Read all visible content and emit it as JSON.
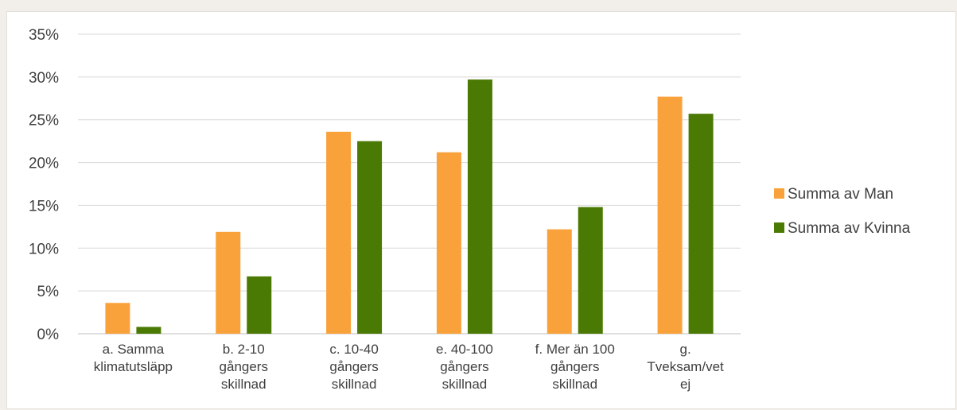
{
  "chart_data": {
    "type": "bar",
    "categories": [
      [
        "a. Samma",
        "klimatutsläpp"
      ],
      [
        "b. 2-10",
        "gångers",
        "skillnad"
      ],
      [
        "c. 10-40",
        "gångers",
        "skillnad"
      ],
      [
        "e. 40-100",
        "gångers",
        "skillnad"
      ],
      [
        "f. Mer än 100",
        "gångers",
        "skillnad"
      ],
      [
        "g.",
        "Tveksam/vet",
        "ej"
      ]
    ],
    "series": [
      {
        "name": "Summa av Man",
        "color": "#f9a23b",
        "values": [
          3.6,
          11.9,
          23.6,
          21.2,
          12.2,
          27.7
        ]
      },
      {
        "name": "Summa av Kvinna",
        "color": "#4a7a04",
        "values": [
          0.8,
          6.7,
          22.5,
          29.7,
          14.8,
          25.7
        ]
      }
    ],
    "yticks": [
      "0%",
      "5%",
      "10%",
      "15%",
      "20%",
      "25%",
      "30%",
      "35%"
    ],
    "ylim": [
      0,
      35
    ],
    "grid": true,
    "legend_position": "right"
  }
}
